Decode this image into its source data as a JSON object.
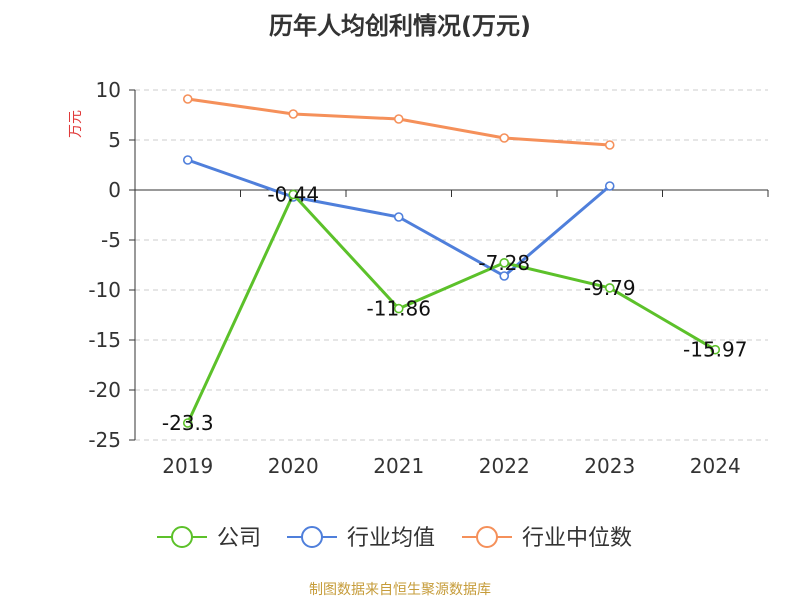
{
  "chart_data": {
    "type": "line",
    "title": "历年人均创利情况(万元)",
    "ylabel": "万元",
    "categories": [
      "2019",
      "2020",
      "2021",
      "2022",
      "2023",
      "2024"
    ],
    "ylim": [
      -25,
      10
    ],
    "yticks": [
      10,
      5,
      0,
      -5,
      -10,
      -15,
      -20,
      -25
    ],
    "grid": true,
    "legend_position": "bottom",
    "series": [
      {
        "name": "公司",
        "color": "#5cc12a",
        "values": [
          -23.3,
          -0.44,
          -11.86,
          -7.28,
          -9.79,
          -15.97
        ],
        "labels": [
          "-23.3",
          "-0.44",
          "-11.86",
          "-7.28",
          "-9.79",
          "-15.97"
        ]
      },
      {
        "name": "行业均值",
        "color": "#4f7fdb",
        "values": [
          3.0,
          -0.7,
          -2.7,
          -8.6,
          0.4,
          null
        ]
      },
      {
        "name": "行业中位数",
        "color": "#f5905a",
        "values": [
          9.1,
          7.6,
          7.1,
          5.2,
          4.5,
          null
        ]
      }
    ]
  },
  "source": "制图数据来自恒生聚源数据库"
}
